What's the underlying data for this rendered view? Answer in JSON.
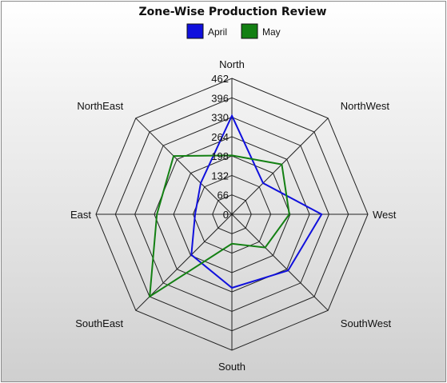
{
  "chart_data": {
    "type": "radar",
    "title": "Zone-Wise Production Review",
    "categories": [
      "North",
      "NorthWest",
      "West",
      "SouthWest",
      "South",
      "SouthEast",
      "East",
      "NorthEast"
    ],
    "rlim": [
      0,
      462
    ],
    "ticks": [
      "0",
      "66",
      "132",
      "198",
      "264",
      "330",
      "396",
      "462"
    ],
    "tick_values": [
      0,
      66,
      132,
      198,
      264,
      330,
      396,
      462
    ],
    "legend_position": "top",
    "grid": true,
    "series": [
      {
        "name": "April",
        "color": "#1010dd",
        "values": [
          335,
          150,
          305,
          270,
          250,
          195,
          125,
          150
        ]
      },
      {
        "name": "May",
        "color": "#138013",
        "values": [
          200,
          240,
          195,
          160,
          100,
          395,
          255,
          280
        ]
      }
    ]
  }
}
